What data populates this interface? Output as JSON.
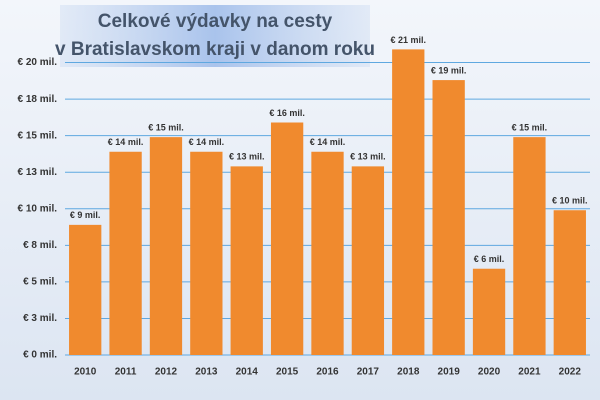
{
  "chart_data": {
    "type": "bar",
    "title": [
      "Celkové výdavky na cesty",
      "v Bratislavskom kraji v danom roku"
    ],
    "categories": [
      "2010",
      "2011",
      "2012",
      "2013",
      "2014",
      "2015",
      "2016",
      "2017",
      "2018",
      "2019",
      "2020",
      "2021",
      "2022"
    ],
    "values": [
      8.9,
      13.9,
      14.9,
      13.9,
      12.9,
      15.9,
      13.9,
      12.9,
      20.9,
      18.8,
      5.9,
      14.9,
      9.9
    ],
    "value_labels": [
      "€ 9 mil.",
      "€ 14 mil.",
      "€ 15 mil.",
      "€ 14 mil.",
      "€ 13 mil.",
      "€ 16 mil.",
      "€ 14 mil.",
      "€ 13 mil.",
      "€ 21 mil.",
      "€ 19 mil.",
      "€ 6 mil.",
      "€ 15 mil.",
      "€ 10 mil."
    ],
    "color": "#f08a2e",
    "ylim": [
      0,
      22.5
    ],
    "yticks": [
      {
        "value": 0,
        "label": "€ 0 mil."
      },
      {
        "value": 2.5,
        "label": "€ 3 mil."
      },
      {
        "value": 5,
        "label": "€ 5 mil."
      },
      {
        "value": 7.5,
        "label": "€ 8 mil."
      },
      {
        "value": 10,
        "label": "€ 10 mil."
      },
      {
        "value": 12.5,
        "label": "€ 13 mil."
      },
      {
        "value": 15,
        "label": "€ 15 mil."
      },
      {
        "value": 17.5,
        "label": "€ 18 mil."
      },
      {
        "value": 20,
        "label": "€ 20 mil."
      }
    ],
    "grid": true
  }
}
